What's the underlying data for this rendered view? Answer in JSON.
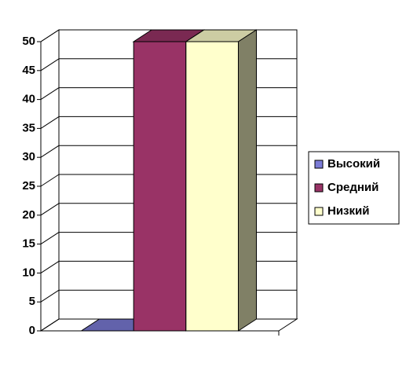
{
  "chart_data": {
    "type": "bar3d",
    "categories": [
      null
    ],
    "series": [
      {
        "name": "Высокий",
        "color": "#7b7bd6",
        "values": [
          0
        ]
      },
      {
        "name": "Средний",
        "color": "#993366",
        "values": [
          50
        ]
      },
      {
        "name": "Низкий",
        "color": "#ffffcc",
        "values": [
          50
        ]
      }
    ],
    "ylim": [
      0,
      50
    ],
    "yticks": [
      0,
      5,
      10,
      15,
      20,
      25,
      30,
      35,
      40,
      45,
      50
    ],
    "grid": true,
    "legend": "right"
  }
}
